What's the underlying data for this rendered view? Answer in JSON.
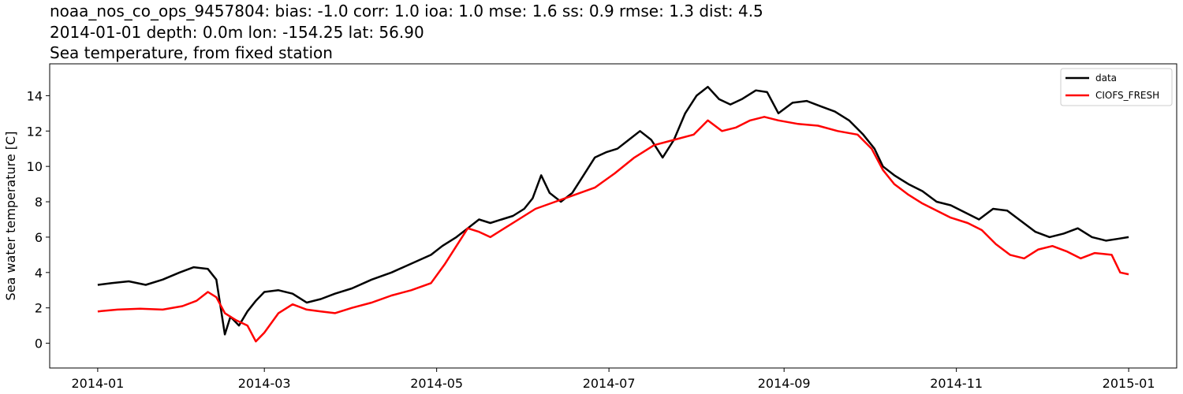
{
  "chart_data": {
    "type": "line",
    "title_lines": [
      "noaa_nos_co_ops_9457804: bias: -1.0  corr: 1.0  ioa: 1.0  mse: 1.6  ss: 0.9  rmse: 1.3  dist: 4.5",
      "2014-01-01 depth: 0.0m lon: -154.25 lat: 56.90",
      "Sea temperature, from fixed station"
    ],
    "xlabel": "",
    "ylabel": "Sea water temperature [C]",
    "xlim": [
      "2013-12-15",
      "2015-01-18"
    ],
    "ylim": [
      -1.4,
      15.8
    ],
    "x_ticks": [
      "2014-01-01",
      "2014-03-01",
      "2014-05-01",
      "2014-07-01",
      "2014-09-01",
      "2014-11-01",
      "2015-01-01"
    ],
    "x_tick_labels": [
      "2014-01",
      "2014-03",
      "2014-05",
      "2014-07",
      "2014-09",
      "2014-11",
      "2015-01"
    ],
    "y_ticks": [
      0,
      2,
      4,
      6,
      8,
      10,
      12,
      14
    ],
    "y_tick_labels": [
      "0",
      "2",
      "4",
      "6",
      "8",
      "10",
      "12",
      "14"
    ],
    "grid": false,
    "legend": "top-right",
    "series": [
      {
        "name": "data",
        "color": "#000000",
        "points": [
          [
            "2014-01-01",
            3.3
          ],
          [
            "2014-01-06",
            3.4
          ],
          [
            "2014-01-12",
            3.5
          ],
          [
            "2014-01-18",
            3.3
          ],
          [
            "2014-01-24",
            3.6
          ],
          [
            "2014-01-30",
            4.0
          ],
          [
            "2014-02-04",
            4.3
          ],
          [
            "2014-02-09",
            4.2
          ],
          [
            "2014-02-12",
            3.6
          ],
          [
            "2014-02-15",
            0.5
          ],
          [
            "2014-02-17",
            1.5
          ],
          [
            "2014-02-20",
            1.0
          ],
          [
            "2014-02-23",
            1.8
          ],
          [
            "2014-02-26",
            2.4
          ],
          [
            "2014-03-01",
            2.9
          ],
          [
            "2014-03-06",
            3.0
          ],
          [
            "2014-03-11",
            2.8
          ],
          [
            "2014-03-16",
            2.3
          ],
          [
            "2014-03-21",
            2.5
          ],
          [
            "2014-03-26",
            2.8
          ],
          [
            "2014-04-01",
            3.1
          ],
          [
            "2014-04-08",
            3.6
          ],
          [
            "2014-04-15",
            4.0
          ],
          [
            "2014-04-22",
            4.5
          ],
          [
            "2014-04-29",
            5.0
          ],
          [
            "2014-05-03",
            5.5
          ],
          [
            "2014-05-08",
            6.0
          ],
          [
            "2014-05-12",
            6.5
          ],
          [
            "2014-05-16",
            7.0
          ],
          [
            "2014-05-20",
            6.8
          ],
          [
            "2014-05-24",
            7.0
          ],
          [
            "2014-05-28",
            7.2
          ],
          [
            "2014-06-01",
            7.6
          ],
          [
            "2014-06-04",
            8.2
          ],
          [
            "2014-06-07",
            9.5
          ],
          [
            "2014-06-10",
            8.5
          ],
          [
            "2014-06-14",
            8.0
          ],
          [
            "2014-06-18",
            8.5
          ],
          [
            "2014-06-22",
            9.5
          ],
          [
            "2014-06-26",
            10.5
          ],
          [
            "2014-06-30",
            10.8
          ],
          [
            "2014-07-04",
            11.0
          ],
          [
            "2014-07-08",
            11.5
          ],
          [
            "2014-07-12",
            12.0
          ],
          [
            "2014-07-16",
            11.5
          ],
          [
            "2014-07-20",
            10.5
          ],
          [
            "2014-07-24",
            11.5
          ],
          [
            "2014-07-28",
            13.0
          ],
          [
            "2014-08-01",
            14.0
          ],
          [
            "2014-08-05",
            14.5
          ],
          [
            "2014-08-09",
            13.8
          ],
          [
            "2014-08-13",
            13.5
          ],
          [
            "2014-08-17",
            13.8
          ],
          [
            "2014-08-22",
            14.3
          ],
          [
            "2014-08-26",
            14.2
          ],
          [
            "2014-08-30",
            13.0
          ],
          [
            "2014-09-04",
            13.6
          ],
          [
            "2014-09-09",
            13.7
          ],
          [
            "2014-09-14",
            13.4
          ],
          [
            "2014-09-19",
            13.1
          ],
          [
            "2014-09-24",
            12.6
          ],
          [
            "2014-09-29",
            11.8
          ],
          [
            "2014-10-03",
            11.0
          ],
          [
            "2014-10-06",
            10.0
          ],
          [
            "2014-10-10",
            9.5
          ],
          [
            "2014-10-15",
            9.0
          ],
          [
            "2014-10-20",
            8.6
          ],
          [
            "2014-10-25",
            8.0
          ],
          [
            "2014-10-30",
            7.8
          ],
          [
            "2014-11-04",
            7.4
          ],
          [
            "2014-11-09",
            7.0
          ],
          [
            "2014-11-14",
            7.6
          ],
          [
            "2014-11-19",
            7.5
          ],
          [
            "2014-11-24",
            6.9
          ],
          [
            "2014-11-29",
            6.3
          ],
          [
            "2014-12-04",
            6.0
          ],
          [
            "2014-12-09",
            6.2
          ],
          [
            "2014-12-14",
            6.5
          ],
          [
            "2014-12-19",
            6.0
          ],
          [
            "2014-12-24",
            5.8
          ],
          [
            "2014-12-28",
            5.9
          ],
          [
            "2015-01-01",
            6.0
          ]
        ]
      },
      {
        "name": "CIOFS_FRESH",
        "color": "#ff0000",
        "points": [
          [
            "2014-01-01",
            1.8
          ],
          [
            "2014-01-08",
            1.9
          ],
          [
            "2014-01-16",
            1.95
          ],
          [
            "2014-01-24",
            1.9
          ],
          [
            "2014-01-31",
            2.1
          ],
          [
            "2014-02-05",
            2.4
          ],
          [
            "2014-02-09",
            2.9
          ],
          [
            "2014-02-12",
            2.6
          ],
          [
            "2014-02-15",
            1.7
          ],
          [
            "2014-02-19",
            1.3
          ],
          [
            "2014-02-23",
            1.0
          ],
          [
            "2014-02-26",
            0.1
          ],
          [
            "2014-03-01",
            0.6
          ],
          [
            "2014-03-06",
            1.7
          ],
          [
            "2014-03-11",
            2.2
          ],
          [
            "2014-03-16",
            1.9
          ],
          [
            "2014-03-21",
            1.8
          ],
          [
            "2014-03-26",
            1.7
          ],
          [
            "2014-04-01",
            2.0
          ],
          [
            "2014-04-08",
            2.3
          ],
          [
            "2014-04-15",
            2.7
          ],
          [
            "2014-04-22",
            3.0
          ],
          [
            "2014-04-29",
            3.4
          ],
          [
            "2014-05-04",
            4.5
          ],
          [
            "2014-05-08",
            5.5
          ],
          [
            "2014-05-12",
            6.5
          ],
          [
            "2014-05-16",
            6.3
          ],
          [
            "2014-05-20",
            6.0
          ],
          [
            "2014-05-25",
            6.5
          ],
          [
            "2014-05-30",
            7.0
          ],
          [
            "2014-06-05",
            7.6
          ],
          [
            "2014-06-12",
            8.0
          ],
          [
            "2014-06-19",
            8.4
          ],
          [
            "2014-06-26",
            8.8
          ],
          [
            "2014-07-03",
            9.6
          ],
          [
            "2014-07-10",
            10.5
          ],
          [
            "2014-07-17",
            11.2
          ],
          [
            "2014-07-24",
            11.5
          ],
          [
            "2014-07-31",
            11.8
          ],
          [
            "2014-08-05",
            12.6
          ],
          [
            "2014-08-10",
            12.0
          ],
          [
            "2014-08-15",
            12.2
          ],
          [
            "2014-08-20",
            12.6
          ],
          [
            "2014-08-25",
            12.8
          ],
          [
            "2014-08-30",
            12.6
          ],
          [
            "2014-09-06",
            12.4
          ],
          [
            "2014-09-13",
            12.3
          ],
          [
            "2014-09-20",
            12.0
          ],
          [
            "2014-09-27",
            11.8
          ],
          [
            "2014-10-02",
            11.0
          ],
          [
            "2014-10-06",
            9.8
          ],
          [
            "2014-10-10",
            9.0
          ],
          [
            "2014-10-15",
            8.4
          ],
          [
            "2014-10-20",
            7.9
          ],
          [
            "2014-10-25",
            7.5
          ],
          [
            "2014-10-30",
            7.1
          ],
          [
            "2014-11-05",
            6.8
          ],
          [
            "2014-11-10",
            6.4
          ],
          [
            "2014-11-15",
            5.6
          ],
          [
            "2014-11-20",
            5.0
          ],
          [
            "2014-11-25",
            4.8
          ],
          [
            "2014-11-30",
            5.3
          ],
          [
            "2014-12-05",
            5.5
          ],
          [
            "2014-12-10",
            5.2
          ],
          [
            "2014-12-15",
            4.8
          ],
          [
            "2014-12-20",
            5.1
          ],
          [
            "2014-12-26",
            5.0
          ],
          [
            "2014-12-29",
            4.0
          ],
          [
            "2015-01-01",
            3.9
          ]
        ]
      }
    ]
  }
}
